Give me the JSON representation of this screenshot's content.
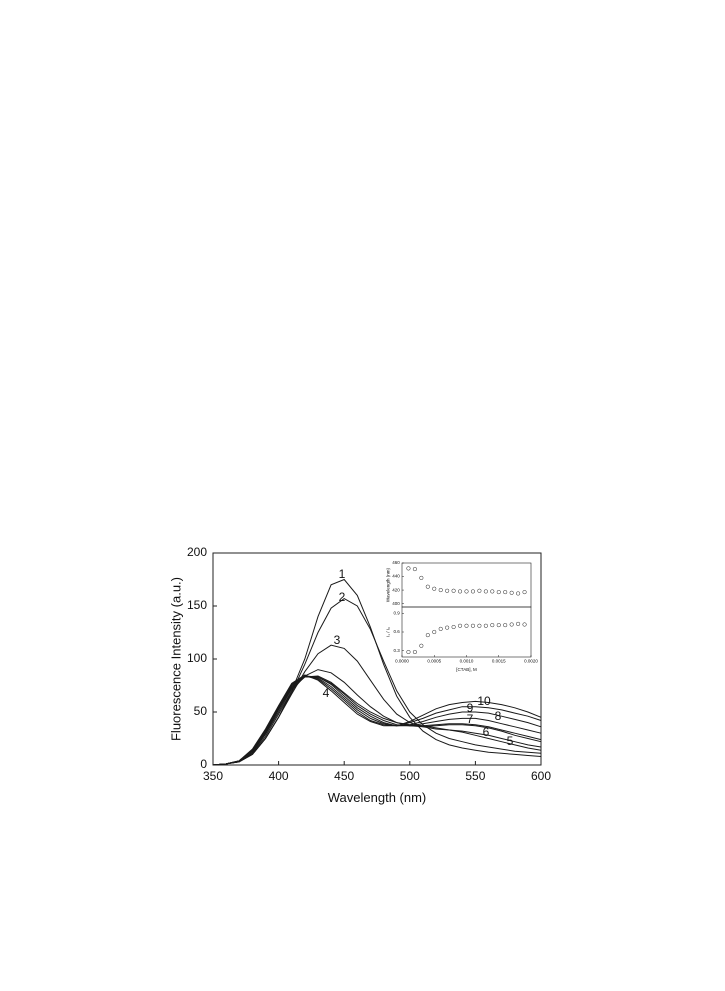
{
  "chart_data": [
    {
      "type": "line",
      "xlabel": "Wavelength (nm)",
      "ylabel": "Fluorescence Intensity (a.u.)",
      "xlim": [
        350,
        600
      ],
      "xticks": [
        350,
        400,
        450,
        500,
        550,
        600
      ],
      "ylim": [
        0,
        200
      ],
      "yticks": [
        0,
        50,
        100,
        150,
        200
      ],
      "color": "#1a1a1a",
      "x": [
        350,
        360,
        370,
        380,
        390,
        400,
        410,
        420,
        430,
        440,
        450,
        460,
        470,
        480,
        490,
        500,
        510,
        520,
        530,
        540,
        550,
        560,
        570,
        580,
        590,
        600
      ],
      "series": [
        {
          "name": "1",
          "values": [
            0,
            1,
            3,
            10,
            25,
            45,
            70,
            100,
            140,
            170,
            175,
            160,
            130,
            95,
            65,
            45,
            32,
            24,
            19,
            16,
            14,
            12,
            11,
            10,
            9,
            8
          ]
        },
        {
          "name": "2",
          "values": [
            0,
            1,
            3,
            10,
            25,
            45,
            68,
            95,
            125,
            148,
            157,
            150,
            128,
            98,
            70,
            50,
            38,
            30,
            25,
            22,
            19,
            17,
            15,
            13,
            12,
            11
          ]
        },
        {
          "name": "3",
          "values": [
            0,
            1,
            3,
            10,
            25,
            45,
            67,
            88,
            105,
            113,
            110,
            98,
            80,
            62,
            48,
            40,
            36,
            34,
            33,
            32,
            30,
            28,
            25,
            22,
            19,
            17
          ]
        },
        {
          "name": "4",
          "values": [
            0,
            1,
            3,
            11,
            27,
            48,
            70,
            84,
            90,
            87,
            78,
            66,
            55,
            46,
            40,
            37,
            36,
            37,
            38,
            38,
            37,
            35,
            32,
            28,
            25,
            22
          ]
        },
        {
          "name": "5",
          "values": [
            0,
            1,
            3,
            12,
            29,
            50,
            72,
            83,
            84,
            78,
            68,
            58,
            50,
            44,
            40,
            38,
            37,
            35,
            33,
            31,
            28,
            25,
            22,
            19,
            16,
            14
          ]
        },
        {
          "name": "6",
          "values": [
            0,
            1,
            4,
            13,
            30,
            52,
            73,
            83,
            83,
            77,
            67,
            56,
            48,
            42,
            38,
            37,
            37,
            38,
            39,
            39,
            38,
            36,
            33,
            30,
            27,
            24
          ]
        },
        {
          "name": "7",
          "values": [
            0,
            1,
            4,
            13,
            31,
            53,
            74,
            84,
            83,
            76,
            65,
            54,
            46,
            40,
            37,
            37,
            39,
            41,
            43,
            44,
            44,
            42,
            39,
            36,
            33,
            30
          ]
        },
        {
          "name": "8",
          "values": [
            0,
            1,
            4,
            14,
            32,
            54,
            75,
            84,
            82,
            74,
            63,
            52,
            44,
            39,
            37,
            38,
            41,
            45,
            48,
            50,
            50,
            49,
            46,
            43,
            40,
            36
          ]
        },
        {
          "name": "9",
          "values": [
            0,
            1,
            4,
            14,
            33,
            55,
            76,
            84,
            81,
            72,
            61,
            50,
            42,
            38,
            37,
            40,
            44,
            49,
            52,
            55,
            55,
            54,
            52,
            49,
            46,
            42
          ]
        },
        {
          "name": "10",
          "values": [
            0,
            1,
            4,
            15,
            34,
            56,
            77,
            85,
            80,
            70,
            59,
            48,
            41,
            37,
            37,
            41,
            47,
            53,
            57,
            59,
            60,
            59,
            57,
            54,
            50,
            45
          ]
        }
      ]
    },
    {
      "type": "scatter",
      "ylabel": "Wavelength (nm)",
      "xlim": [
        0,
        0.002
      ],
      "ylim": [
        395,
        460
      ],
      "yticks": [
        400,
        420,
        440,
        460
      ],
      "x": [
        0.0001,
        0.0002,
        0.0003,
        0.0004,
        0.0005,
        0.0006,
        0.0007,
        0.0008,
        0.0009,
        0.001,
        0.0011,
        0.0012,
        0.0013,
        0.0014,
        0.0015,
        0.0016,
        0.0017,
        0.0018,
        0.0019
      ],
      "values": [
        452,
        451,
        438,
        425,
        422,
        420,
        419,
        419,
        418,
        418,
        418,
        419,
        418,
        418,
        417,
        417,
        416,
        415,
        417
      ]
    },
    {
      "type": "scatter",
      "xlabel": "[CTAB], M",
      "ylabel": "I₁ / I₀",
      "xlim": [
        0,
        0.002
      ],
      "xticks": [
        {
          "value": 0,
          "label": "0.0000"
        },
        {
          "value": 0.0005,
          "label": "0.0005"
        },
        {
          "value": 0.001,
          "label": "0.0010"
        },
        {
          "value": 0.0015,
          "label": "0.0015"
        },
        {
          "value": 0.002,
          "label": "0.0020"
        }
      ],
      "ylim": [
        0.2,
        1.0
      ],
      "yticks": [
        0.3,
        0.6,
        0.9
      ],
      "x": [
        0.0001,
        0.0002,
        0.0003,
        0.0004,
        0.0005,
        0.0006,
        0.0007,
        0.0008,
        0.0009,
        0.001,
        0.0011,
        0.0012,
        0.0013,
        0.0014,
        0.0015,
        0.0016,
        0.0017,
        0.0018,
        0.0019
      ],
      "values": [
        0.28,
        0.28,
        0.38,
        0.55,
        0.6,
        0.65,
        0.67,
        0.68,
        0.7,
        0.7,
        0.7,
        0.7,
        0.7,
        0.71,
        0.71,
        0.71,
        0.72,
        0.73,
        0.72
      ]
    }
  ]
}
